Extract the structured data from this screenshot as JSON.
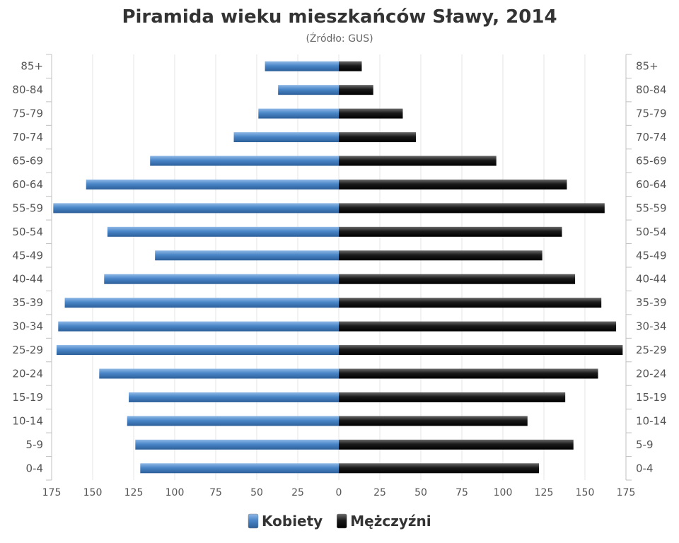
{
  "chart_data": {
    "type": "bar",
    "orientation": "horizontal-pyramid",
    "title": "Piramida wieku mieszkańców Sławy, 2014",
    "subtitle": "(Źródło: GUS)",
    "categories": [
      "85+",
      "80-84",
      "75-79",
      "70-74",
      "65-69",
      "60-64",
      "55-59",
      "50-54",
      "45-49",
      "40-44",
      "35-39",
      "30-34",
      "25-29",
      "20-24",
      "15-19",
      "10-14",
      "5-9",
      "0-4"
    ],
    "series": [
      {
        "name": "Kobiety",
        "side": "left",
        "color": "#4a86c8",
        "values": [
          45,
          37,
          49,
          64,
          115,
          154,
          174,
          141,
          112,
          143,
          167,
          171,
          172,
          146,
          128,
          129,
          124,
          121
        ]
      },
      {
        "name": "Mężczyźni",
        "side": "right",
        "color": "#1a1a1a",
        "values": [
          14,
          21,
          39,
          47,
          96,
          139,
          162,
          136,
          124,
          144,
          160,
          169,
          173,
          158,
          138,
          115,
          143,
          122
        ]
      }
    ],
    "xlim": [
      -175,
      175
    ],
    "xticks": [
      "175",
      "150",
      "125",
      "100",
      "75",
      "50",
      "25",
      "0",
      "25",
      "50",
      "75",
      "100",
      "125",
      "150",
      "175"
    ],
    "grid": true,
    "legend": "bottom-center"
  }
}
